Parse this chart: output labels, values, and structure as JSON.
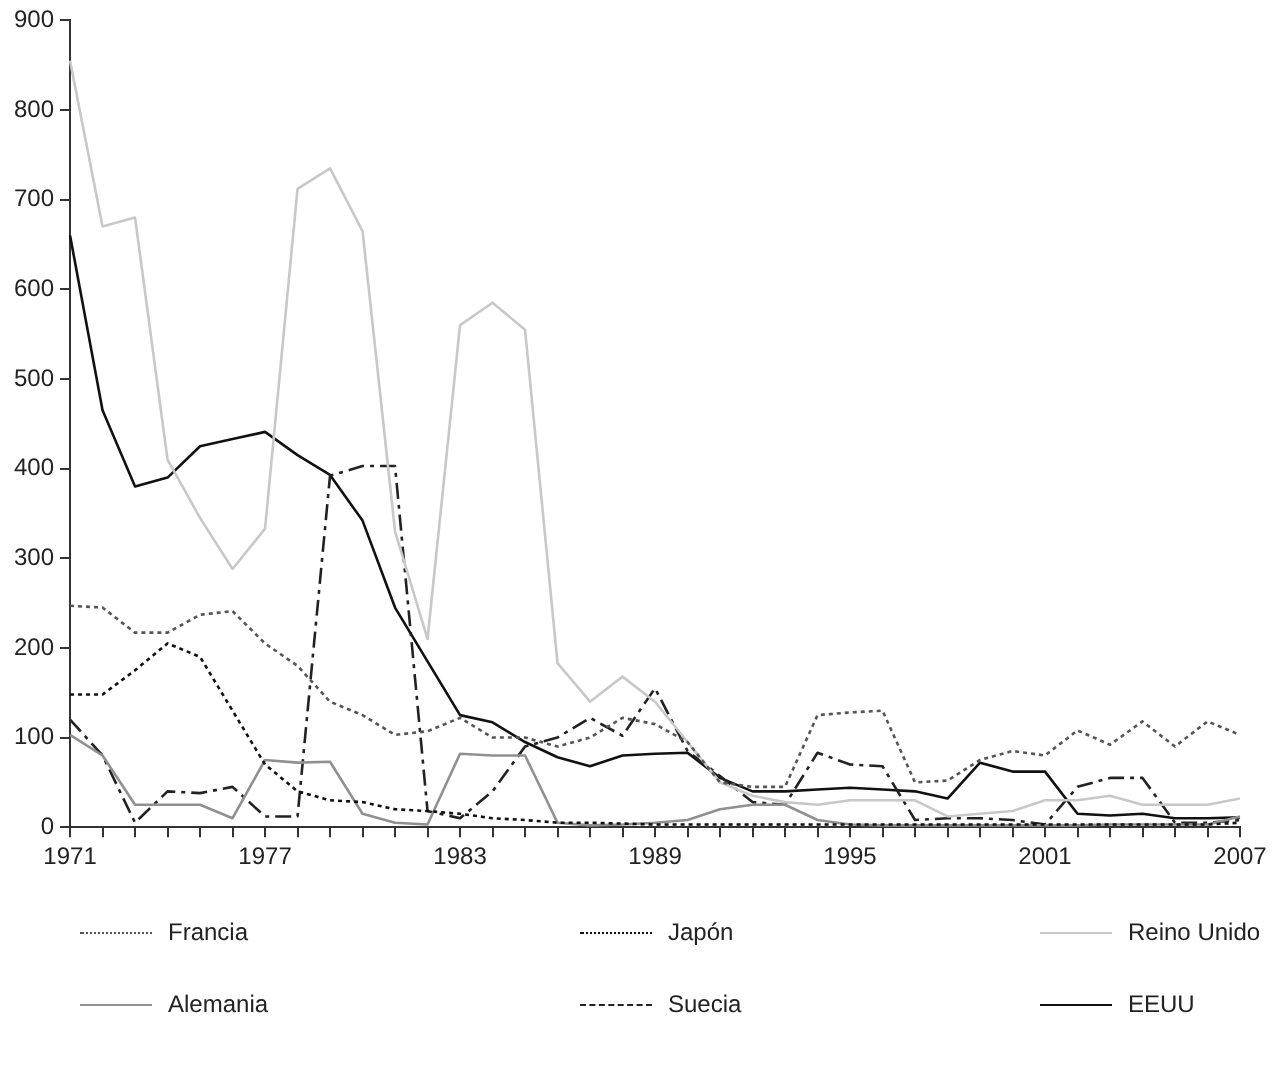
{
  "chart_data": {
    "type": "line",
    "x": [
      1971,
      1972,
      1973,
      1974,
      1975,
      1976,
      1977,
      1978,
      1979,
      1980,
      1981,
      1982,
      1983,
      1984,
      1985,
      1986,
      1987,
      1988,
      1989,
      1990,
      1991,
      1992,
      1993,
      1994,
      1995,
      1996,
      1997,
      1998,
      1999,
      2000,
      2001,
      2002,
      2003,
      2004,
      2005,
      2006,
      2007
    ],
    "xlim": [
      1971,
      2007
    ],
    "xticks": [
      1971,
      {
        "value": 1972,
        "label": null
      },
      {
        "value": 1973,
        "label": null
      },
      {
        "value": 1974,
        "label": null
      },
      {
        "value": 1975,
        "label": null
      },
      {
        "value": 1976,
        "label": null
      },
      1977,
      {
        "value": 1978,
        "label": null
      },
      {
        "value": 1979,
        "label": null
      },
      {
        "value": 1980,
        "label": null
      },
      {
        "value": 1981,
        "label": null
      },
      {
        "value": 1982,
        "label": null
      },
      1983,
      {
        "value": 1984,
        "label": null
      },
      {
        "value": 1985,
        "label": null
      },
      {
        "value": 1986,
        "label": null
      },
      {
        "value": 1987,
        "label": null
      },
      {
        "value": 1988,
        "label": null
      },
      1989,
      {
        "value": 1990,
        "label": null
      },
      {
        "value": 1991,
        "label": null
      },
      {
        "value": 1992,
        "label": null
      },
      {
        "value": 1993,
        "label": null
      },
      {
        "value": 1994,
        "label": null
      },
      1995,
      {
        "value": 1996,
        "label": null
      },
      {
        "value": 1997,
        "label": null
      },
      {
        "value": 1998,
        "label": null
      },
      {
        "value": 1999,
        "label": null
      },
      {
        "value": 2000,
        "label": null
      },
      2001,
      {
        "value": 2002,
        "label": null
      },
      {
        "value": 2003,
        "label": null
      },
      {
        "value": 2004,
        "label": null
      },
      {
        "value": 2005,
        "label": null
      },
      {
        "value": 2006,
        "label": null
      },
      2007
    ],
    "ylim": [
      0,
      900
    ],
    "yticks": [
      0,
      100,
      200,
      300,
      400,
      500,
      600,
      700,
      800,
      900
    ],
    "grid": false,
    "legend": "bottom",
    "marker": "none",
    "series": [
      {
        "name": "Francia",
        "color": "#555555",
        "line_style": "dotted",
        "values": [
          247,
          245,
          217,
          217,
          237,
          241,
          205,
          180,
          140,
          125,
          103,
          107,
          122,
          100,
          100,
          90,
          100,
          122,
          115,
          95,
          50,
          45,
          45,
          125,
          128,
          130,
          50,
          52,
          75,
          85,
          80,
          108,
          92,
          118,
          90,
          118,
          103
        ]
      },
      {
        "name": "Japón",
        "color": "#111111",
        "line_style": "dotted",
        "values": [
          148,
          148,
          175,
          205,
          190,
          130,
          70,
          40,
          30,
          28,
          20,
          18,
          15,
          10,
          8,
          5,
          5,
          4,
          3,
          3,
          3,
          3,
          3,
          3,
          3,
          3,
          3,
          3,
          3,
          3,
          3,
          3,
          3,
          3,
          3,
          3,
          5
        ]
      },
      {
        "name": "Reino Unido",
        "color": "#c8c8c8",
        "line_style": "solid",
        "values": [
          855,
          670,
          680,
          410,
          345,
          288,
          333,
          712,
          735,
          665,
          330,
          210,
          560,
          585,
          555,
          183,
          140,
          168,
          140,
          95,
          50,
          35,
          28,
          25,
          30,
          30,
          30,
          12,
          15,
          18,
          30,
          30,
          35,
          25,
          25,
          25,
          32
        ]
      },
      {
        "name": "Alemania",
        "color": "#909090",
        "line_style": "solid",
        "values": [
          103,
          80,
          25,
          25,
          25,
          10,
          75,
          72,
          73,
          15,
          5,
          3,
          82,
          80,
          80,
          5,
          2,
          3,
          5,
          8,
          20,
          25,
          25,
          8,
          3,
          2,
          2,
          2,
          2,
          2,
          2,
          2,
          3,
          3,
          3,
          3,
          12
        ]
      },
      {
        "name": "Suecia",
        "color": "#222222",
        "line_style": "dashdot",
        "values": [
          120,
          80,
          5,
          40,
          38,
          45,
          12,
          12,
          392,
          403,
          403,
          18,
          10,
          40,
          90,
          100,
          122,
          102,
          155,
          85,
          57,
          28,
          25,
          83,
          70,
          68,
          8,
          10,
          10,
          8,
          3,
          45,
          55,
          55,
          5,
          5,
          8
        ]
      },
      {
        "name": "EEUU",
        "color": "#111111",
        "line_style": "solid",
        "values": [
          660,
          465,
          380,
          390,
          425,
          433,
          441,
          415,
          393,
          342,
          245,
          185,
          125,
          117,
          95,
          78,
          68,
          80,
          82,
          83,
          55,
          40,
          40,
          42,
          44,
          42,
          40,
          32,
          72,
          62,
          62,
          15,
          13,
          15,
          10,
          10,
          11
        ]
      }
    ]
  }
}
